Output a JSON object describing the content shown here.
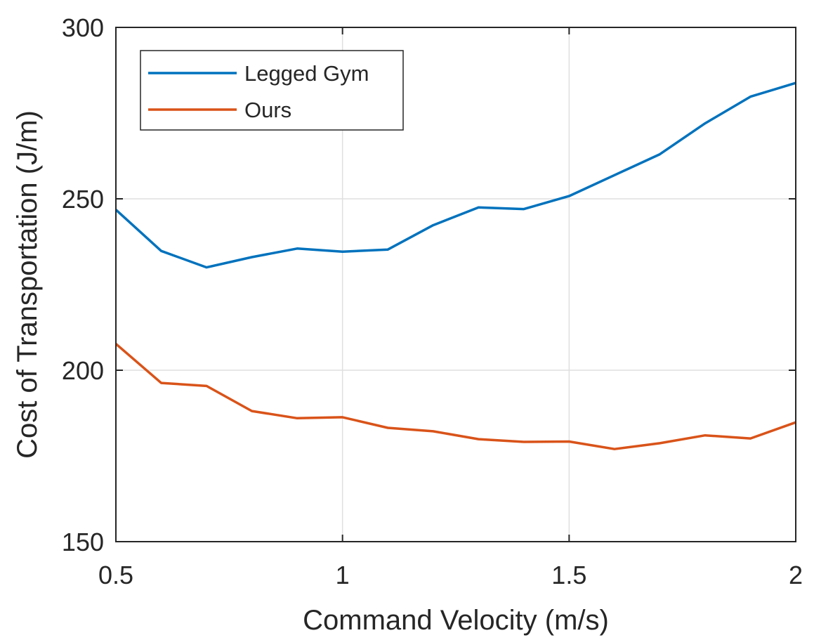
{
  "chart_data": {
    "type": "line",
    "title": "",
    "xlabel": "Command Velocity (m/s)",
    "ylabel": "Cost of Transportation (J/m)",
    "xlim": [
      0.5,
      2
    ],
    "ylim": [
      150,
      300
    ],
    "xticks": [
      0.5,
      1,
      1.5,
      2
    ],
    "xtick_labels": [
      "0.5",
      "1",
      "1.5",
      "2"
    ],
    "yticks": [
      150,
      200,
      250,
      300
    ],
    "ytick_labels": [
      "150",
      "200",
      "250",
      "300"
    ],
    "grid": true,
    "legend_position": "top-left",
    "x": [
      0.5,
      0.6,
      0.7,
      0.8,
      0.9,
      1.0,
      1.1,
      1.2,
      1.3,
      1.4,
      1.5,
      1.6,
      1.7,
      1.8,
      1.9,
      2.0
    ],
    "series": [
      {
        "name": "Legged Gym",
        "color": "#0072BD",
        "values": [
          246.8,
          234.8,
          230.0,
          233.0,
          235.5,
          234.6,
          235.2,
          242.3,
          247.5,
          247.0,
          250.8,
          256.9,
          263.0,
          272.0,
          279.8,
          283.8
        ]
      },
      {
        "name": "Ours",
        "color": "#D95319",
        "values": [
          207.7,
          196.3,
          195.4,
          188.1,
          186.0,
          186.3,
          183.2,
          182.2,
          179.9,
          179.1,
          179.2,
          177.0,
          178.7,
          181.0,
          180.1,
          184.8
        ]
      }
    ]
  }
}
